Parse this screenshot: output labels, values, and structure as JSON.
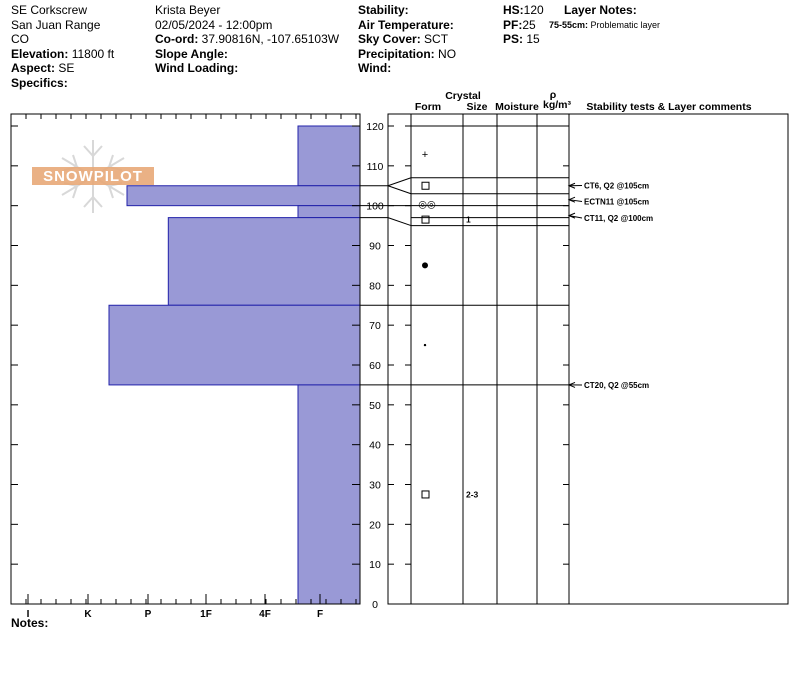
{
  "header": {
    "col1": {
      "location": "SE Corkscrew",
      "range": "San Juan Range",
      "state": "CO",
      "elevation_label": "Elevation:",
      "elevation_value": " 11800 ft",
      "aspect_label": "Aspect:",
      "aspect_value": " SE",
      "specifics_label": "Specifics:"
    },
    "col2": {
      "observer": "Krista Beyer",
      "datetime": "02/05/2024 - 12:00pm",
      "coord_label": "Co-ord:",
      "coord_value": " 37.90816N, -107.65103W",
      "slope_label": "Slope Angle:",
      "wind_loading_label": "Wind Loading:"
    },
    "col3": {
      "stability_label": "Stability:",
      "air_temp_label": "Air Temperature:",
      "sky_cover_label": "Sky Cover:",
      "sky_cover_value": " SCT",
      "precip_label": "Precipitation:",
      "precip_value": " NO",
      "wind_label": "Wind:"
    },
    "col4": {
      "hs_label": "HS:",
      "hs_value": "120",
      "pf_label": "PF:",
      "pf_value": "25",
      "ps_label": "PS:",
      "ps_value": " 15"
    },
    "layer_notes": {
      "title": "Layer Notes:",
      "range": "75-55cm:",
      "text": " Problematic layer"
    }
  },
  "notes_label": "Notes:",
  "logo_text": "SNOWPILOT",
  "colors": {
    "hardness_fill": "#9999d6",
    "hardness_stroke": "#2222aa",
    "logo": "#e8a878",
    "flake": "#d8d8d8"
  },
  "chart_data": {
    "type": "bar",
    "ylim": [
      0,
      120
    ],
    "y_ticks": [
      0,
      10,
      20,
      30,
      40,
      50,
      60,
      70,
      80,
      90,
      100,
      110,
      120
    ],
    "hardness_scale": [
      "I",
      "K",
      "P",
      "1F",
      "4F",
      "F"
    ],
    "hardness_layers": [
      {
        "top": 120,
        "bottom": 105,
        "hardness_index": 0.4
      },
      {
        "top": 105,
        "bottom": 100,
        "hardness_index": 3.35
      },
      {
        "top": 100,
        "bottom": 97,
        "hardness_index": 0.4
      },
      {
        "top": 97,
        "bottom": 75,
        "hardness_index": 2.65
      },
      {
        "top": 75,
        "bottom": 55,
        "hardness_index": 3.65
      },
      {
        "top": 55,
        "bottom": 0,
        "hardness_index": 0.4
      }
    ],
    "column_headers": {
      "crystal": "Crystal",
      "form": "Form",
      "size": "Size",
      "moisture": "Moisture",
      "rho": "ρ",
      "density_unit": "kg/m³",
      "stability": "Stability tests & Layer comments"
    },
    "layer_boundaries": [
      107,
      103,
      100,
      97,
      95,
      75,
      55
    ],
    "grain_forms": [
      {
        "depth": 113,
        "symbol": "+",
        "size": ""
      },
      {
        "depth": 105,
        "symbol": "□",
        "size": ""
      },
      {
        "depth": 100.5,
        "symbol": "◎◎",
        "size": ""
      },
      {
        "depth": 96.5,
        "symbol": "□",
        "size": "1"
      },
      {
        "depth": 85,
        "symbol": "●",
        "size": ""
      },
      {
        "depth": 65,
        "symbol": "•",
        "size": ""
      },
      {
        "depth": 27.5,
        "symbol": "□",
        "size": "2-3"
      }
    ],
    "stability_tests": [
      {
        "depth": 105,
        "label": "CT6, Q2 @105cm"
      },
      {
        "depth": 101.5,
        "label": "ECTN11 @105cm"
      },
      {
        "depth": 97.5,
        "label": "CT11, Q2 @100cm"
      },
      {
        "depth": 55,
        "label": "CT20, Q2 @55cm"
      }
    ]
  }
}
